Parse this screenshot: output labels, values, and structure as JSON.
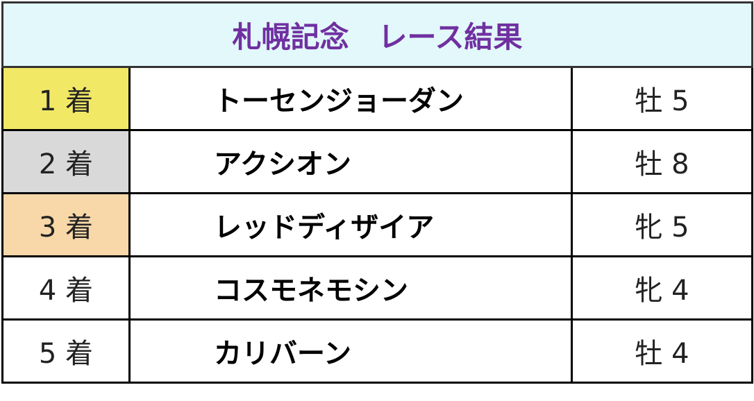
{
  "table": {
    "title": "札幌記念　レース結果",
    "rows": [
      [
        "1 着",
        "トーセンジョーダン",
        "牡 5"
      ],
      [
        "2 着",
        "アクシオン",
        "牡 8"
      ],
      [
        "3 着",
        "レッドディザイア",
        "牝 5"
      ],
      [
        "4 着",
        "コスモネモシン",
        "牝 4"
      ],
      [
        "5 着",
        "カリバーン",
        "牡 4"
      ]
    ]
  }
}
